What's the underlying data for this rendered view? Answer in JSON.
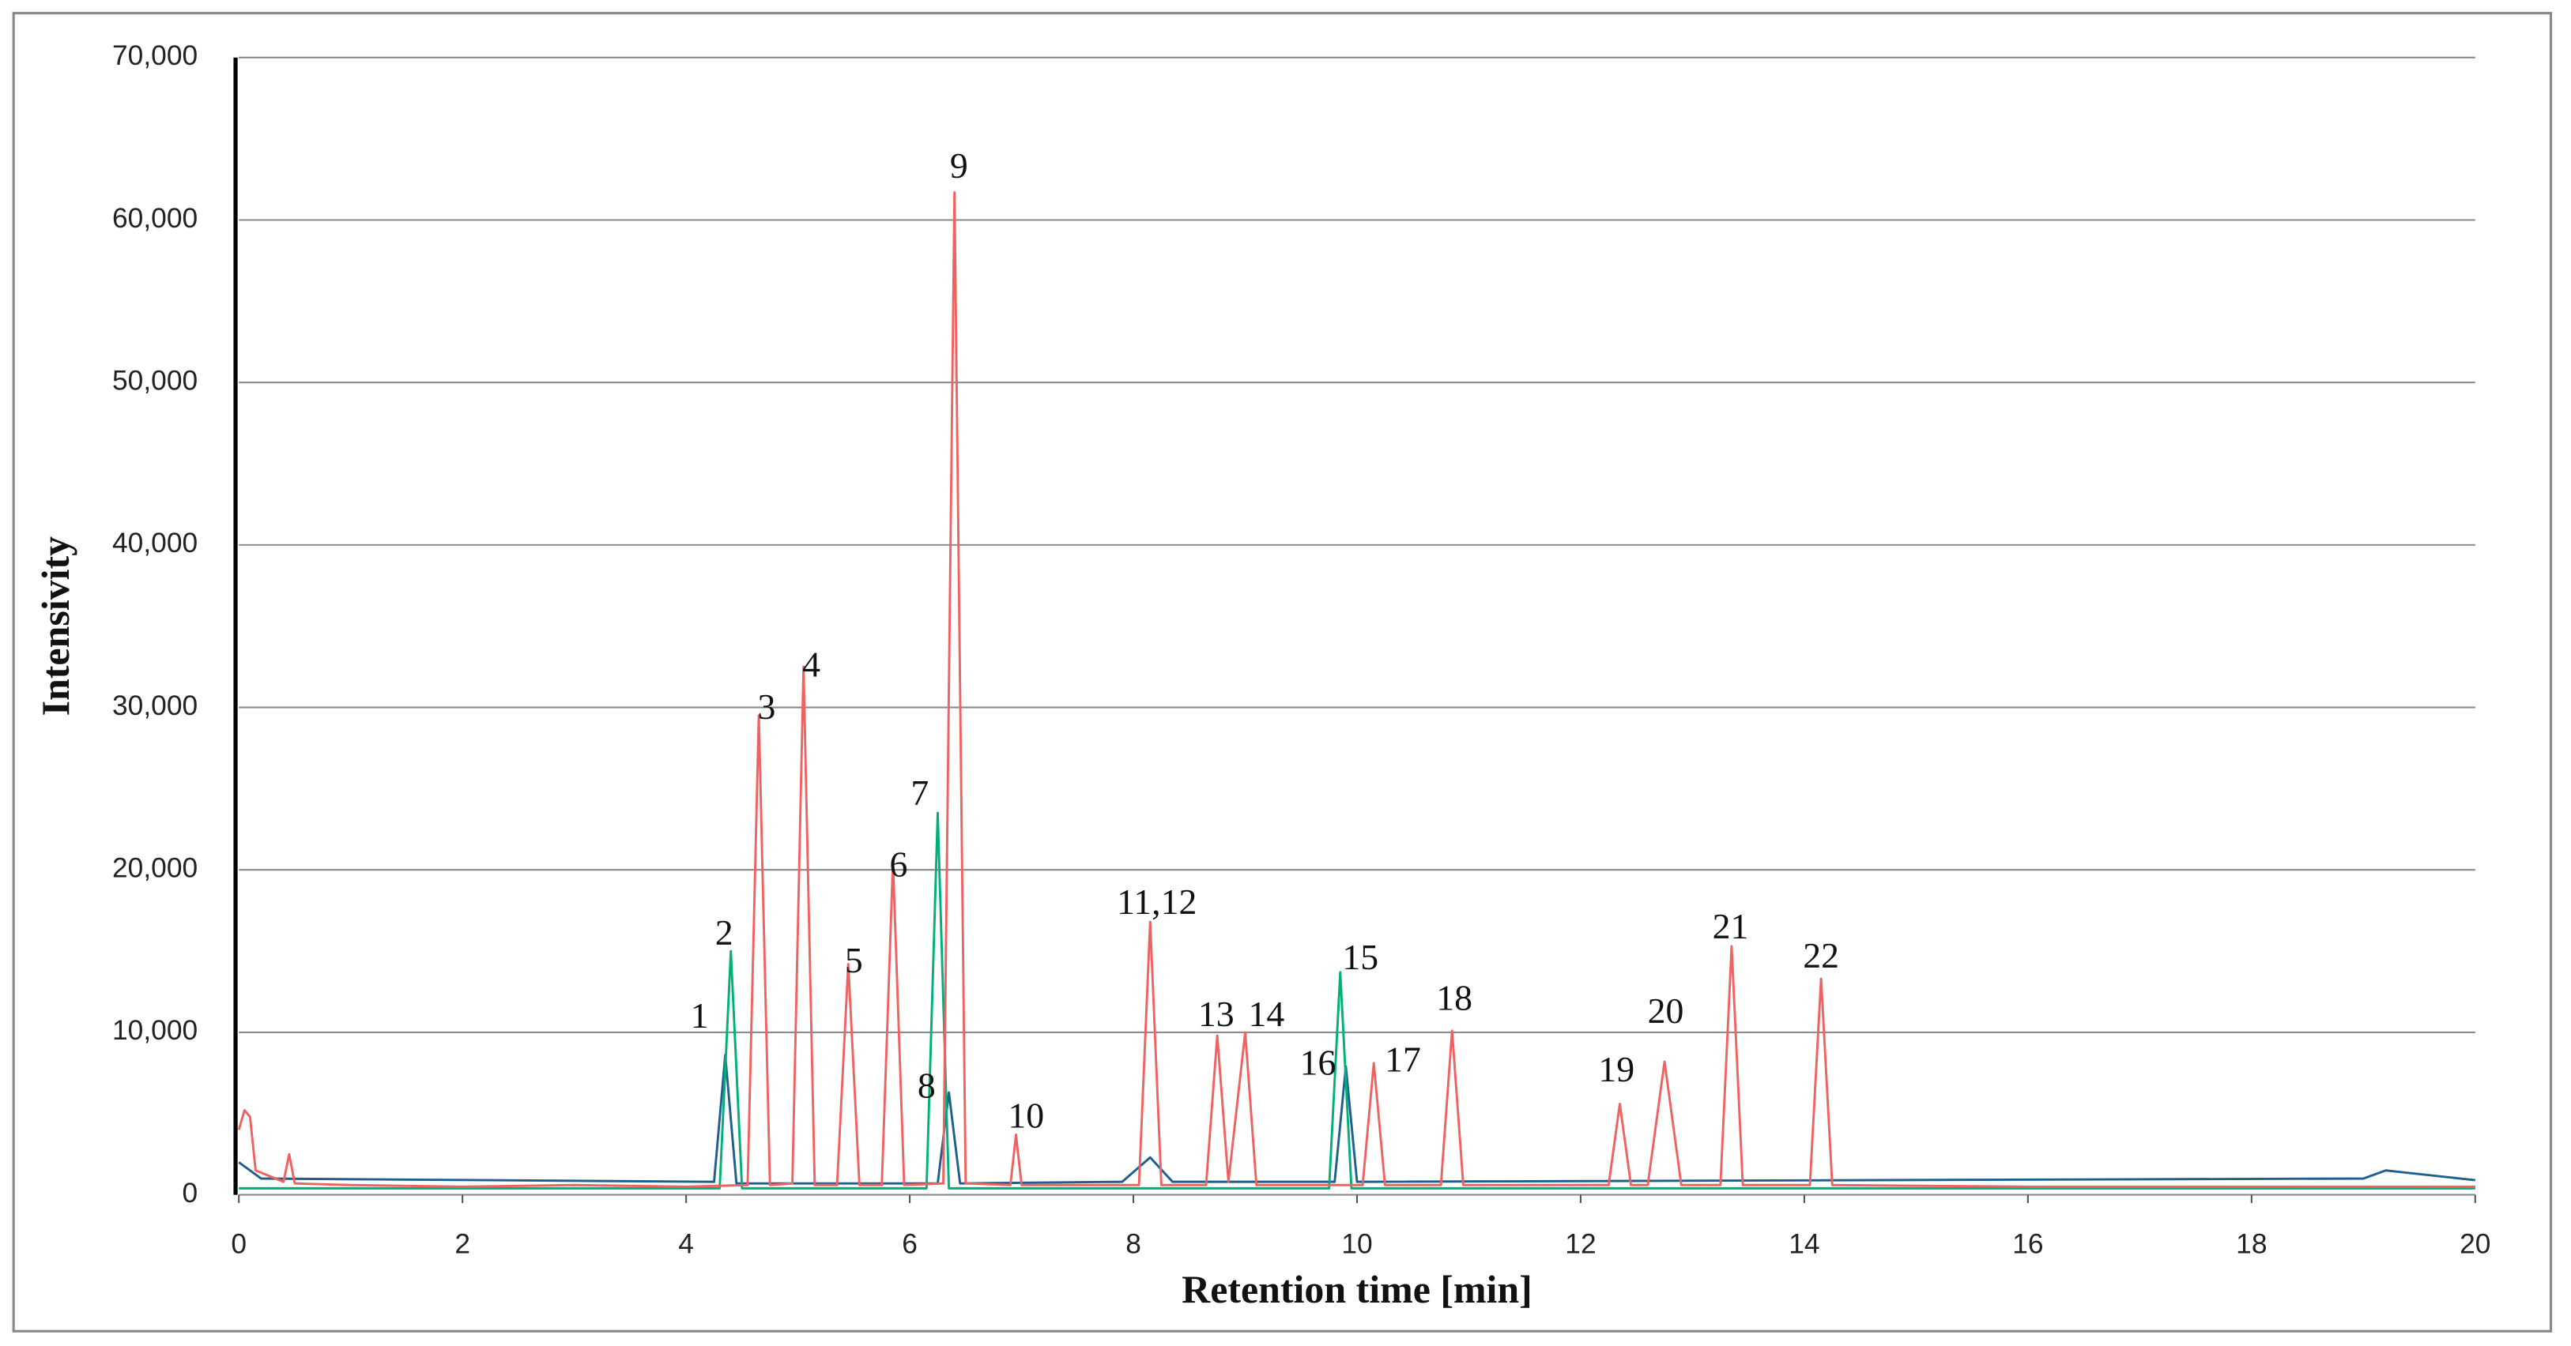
{
  "chart_data": {
    "type": "line",
    "xlabel": "Retention time [min]",
    "ylabel": "Intensivity",
    "xlim": [
      0,
      20
    ],
    "ylim": [
      0,
      70000
    ],
    "xticks": [
      0,
      2,
      4,
      6,
      8,
      10,
      12,
      14,
      16,
      18,
      20
    ],
    "yticks": [
      0,
      {
        "value": 10000,
        "label": "10,000"
      },
      {
        "value": 20000,
        "label": "20,000"
      },
      {
        "value": 30000,
        "label": "30,000"
      },
      {
        "value": 40000,
        "label": "40,000"
      },
      {
        "value": 50000,
        "label": "50,000"
      },
      {
        "value": 60000,
        "label": "60,000"
      },
      {
        "value": 70000,
        "label": "70,000"
      }
    ],
    "grid": true,
    "series": [
      {
        "color": "#f06262",
        "x": [
          0,
          0.05,
          0.1,
          0.15,
          0.4,
          0.45,
          0.5,
          1,
          2,
          3,
          4,
          4.55,
          4.65,
          4.75,
          4.95,
          5.05,
          5.15,
          5.35,
          5.45,
          5.55,
          5.75,
          5.85,
          5.95,
          6.3,
          6.4,
          6.5,
          6.9,
          6.95,
          7.0,
          8.05,
          8.15,
          8.25,
          8.65,
          8.75,
          8.85,
          9.0,
          9.1,
          10.05,
          10.15,
          10.25,
          10.75,
          10.85,
          10.95,
          12.25,
          12.35,
          12.45,
          12.6,
          12.75,
          12.9,
          13.25,
          13.35,
          13.45,
          14.05,
          14.15,
          14.25,
          16,
          18,
          20
        ],
        "values": [
          4000,
          5200,
          4800,
          1500,
          800,
          2500,
          700,
          600,
          500,
          600,
          500,
          600,
          29500,
          600,
          700,
          32500,
          600,
          600,
          14200,
          600,
          600,
          20500,
          600,
          700,
          61700,
          700,
          600,
          3700,
          600,
          600,
          16800,
          600,
          600,
          9800,
          800,
          10000,
          600,
          600,
          8100,
          600,
          600,
          10100,
          600,
          600,
          5600,
          600,
          600,
          8200,
          600,
          600,
          15300,
          600,
          600,
          13300,
          600,
          500,
          500,
          500
        ]
      },
      {
        "color": "#00b07a",
        "x": [
          0,
          4.3,
          4.4,
          4.5,
          6.15,
          6.25,
          6.35,
          9.75,
          9.85,
          9.95,
          20
        ],
        "values": [
          400,
          400,
          15000,
          400,
          400,
          23500,
          400,
          400,
          13700,
          400,
          400
        ]
      },
      {
        "color": "#1f5f8f",
        "x": [
          0,
          0.2,
          4.25,
          4.35,
          4.45,
          6.25,
          6.35,
          6.45,
          7.9,
          8.15,
          8.35,
          9.8,
          9.9,
          10.0,
          19,
          19.2,
          20
        ],
        "values": [
          2000,
          1000,
          800,
          8600,
          700,
          700,
          6300,
          700,
          800,
          2300,
          800,
          800,
          7900,
          800,
          1000,
          1500,
          900
        ]
      }
    ],
    "annotations": [
      {
        "text": "1",
        "x": 4.12,
        "y": 10800
      },
      {
        "text": "2",
        "x": 4.34,
        "y": 15900
      },
      {
        "text": "3",
        "x": 4.72,
        "y": 29800
      },
      {
        "text": "4",
        "x": 5.12,
        "y": 32400
      },
      {
        "text": "5",
        "x": 5.5,
        "y": 14200
      },
      {
        "text": "6",
        "x": 5.9,
        "y": 20100
      },
      {
        "text": "7",
        "x": 6.09,
        "y": 24500
      },
      {
        "text": "8",
        "x": 6.15,
        "y": 6500
      },
      {
        "text": "9",
        "x": 6.44,
        "y": 63100
      },
      {
        "text": "10",
        "x": 7.04,
        "y": 4650
      },
      {
        "text": "11,12",
        "x": 8.21,
        "y": 17800
      },
      {
        "text": "13",
        "x": 8.74,
        "y": 10900
      },
      {
        "text": "14",
        "x": 9.19,
        "y": 10900
      },
      {
        "text": "15",
        "x": 10.03,
        "y": 14400
      },
      {
        "text": "16",
        "x": 9.65,
        "y": 7900
      },
      {
        "text": "17",
        "x": 10.41,
        "y": 8100
      },
      {
        "text": "18",
        "x": 10.87,
        "y": 11900
      },
      {
        "text": "19",
        "x": 12.32,
        "y": 7500
      },
      {
        "text": "20",
        "x": 12.76,
        "y": 11100
      },
      {
        "text": "21",
        "x": 13.34,
        "y": 16300
      },
      {
        "text": "22",
        "x": 14.15,
        "y": 14500
      }
    ]
  }
}
